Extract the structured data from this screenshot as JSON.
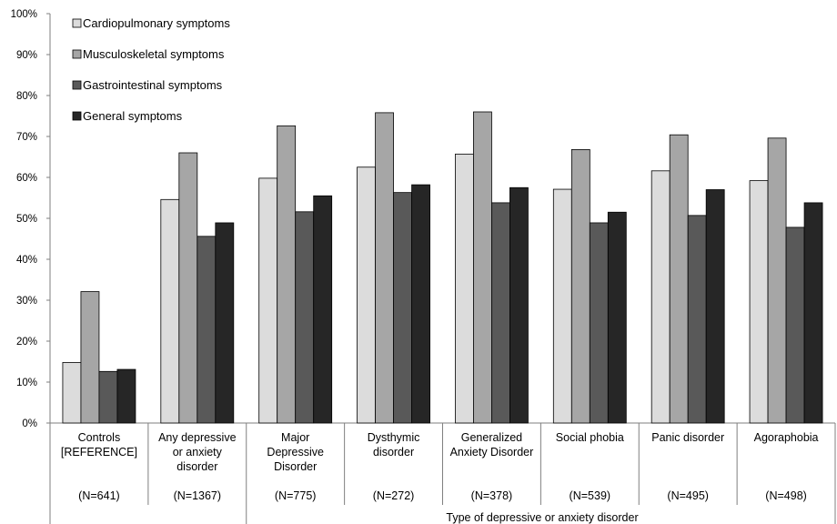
{
  "chart_data": {
    "type": "bar",
    "title": "",
    "xlabel": "Type of depressive or anxiety disorder",
    "ylabel": "",
    "ylim": [
      0,
      100
    ],
    "y_ticks": [
      "0%",
      "10%",
      "20%",
      "30%",
      "40%",
      "50%",
      "60%",
      "70%",
      "80%",
      "90%",
      "100%"
    ],
    "grid": false,
    "legend_position": "top-left",
    "categories": [
      {
        "lines": [
          "Controls",
          "[REFERENCE]"
        ],
        "n": "(N=641)"
      },
      {
        "lines": [
          "Any depressive",
          "or anxiety",
          "disorder"
        ],
        "n": "(N=1367)"
      },
      {
        "lines": [
          "Major",
          "Depressive",
          "Disorder"
        ],
        "n": "(N=775)"
      },
      {
        "lines": [
          "Dysthymic",
          "disorder"
        ],
        "n": "(N=272)"
      },
      {
        "lines": [
          "Generalized",
          "Anxiety Disorder"
        ],
        "n": "(N=378)"
      },
      {
        "lines": [
          "Social phobia"
        ],
        "n": "(N=539)"
      },
      {
        "lines": [
          "Panic disorder"
        ],
        "n": "(N=495)"
      },
      {
        "lines": [
          "Agoraphobia"
        ],
        "n": "(N=498)"
      }
    ],
    "series": [
      {
        "name": "Cardiopulmonary symptoms",
        "color": "#dcdcdc",
        "values": [
          14.8,
          54.6,
          59.8,
          62.5,
          65.7,
          57.1,
          61.6,
          59.2
        ]
      },
      {
        "name": "Musculoskeletal symptoms",
        "color": "#a6a6a6",
        "values": [
          32.1,
          66.0,
          72.6,
          75.8,
          76.0,
          66.8,
          70.4,
          69.6
        ]
      },
      {
        "name": "Gastrointestinal symptoms",
        "color": "#595959",
        "values": [
          12.6,
          45.6,
          51.6,
          56.3,
          53.8,
          48.9,
          50.7,
          47.8
        ]
      },
      {
        "name": "General symptoms",
        "color": "#262626",
        "values": [
          13.1,
          48.9,
          55.5,
          58.2,
          57.5,
          51.5,
          57.0,
          53.8
        ]
      }
    ]
  }
}
